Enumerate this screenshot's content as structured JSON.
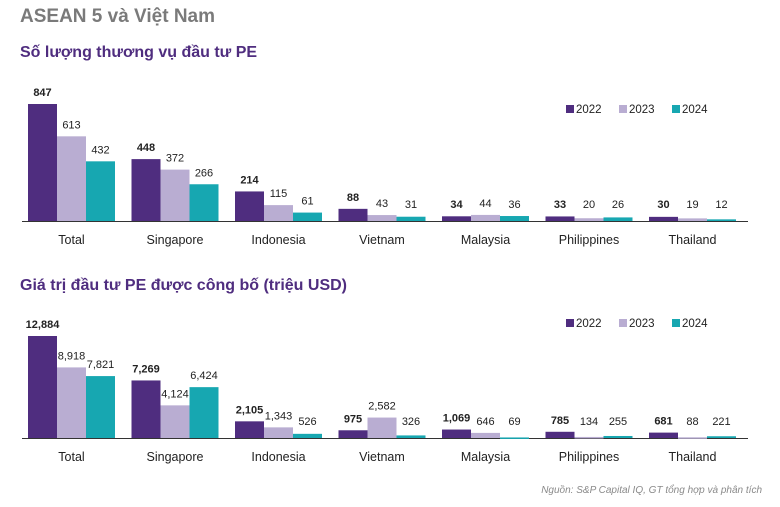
{
  "page_title": "ASEAN 5 và Việt Nam",
  "source": "Nguồn: S&P Capital IQ, GT tổng hợp và phân tích",
  "colors": {
    "2022": "#4F2D7F",
    "2023": "#B9ADD2",
    "2024": "#17A7B1"
  },
  "chart_data": [
    {
      "type": "bar",
      "title": "Số lượng thương vụ đầu tư PE",
      "categories": [
        "Total",
        "Singapore",
        "Indonesia",
        "Vietnam",
        "Malaysia",
        "Philippines",
        "Thailand"
      ],
      "series": [
        {
          "name": "2022",
          "values": [
            847,
            448,
            214,
            88,
            34,
            33,
            30
          ],
          "labels": [
            "847",
            "448",
            "214",
            "88",
            "34",
            "33",
            "30"
          ]
        },
        {
          "name": "2023",
          "values": [
            613,
            372,
            115,
            43,
            44,
            20,
            19
          ],
          "labels": [
            "613",
            "372",
            "115",
            "43",
            "44",
            "20",
            "19"
          ]
        },
        {
          "name": "2024",
          "values": [
            432,
            266,
            61,
            31,
            36,
            26,
            12
          ],
          "labels": [
            "432",
            "266",
            "61",
            "31",
            "36",
            "26",
            "12"
          ]
        }
      ],
      "ylim": [
        0,
        847
      ],
      "legend": "top-right"
    },
    {
      "type": "bar",
      "title": "Giá trị đầu tư PE được công bố (triệu USD)",
      "categories": [
        "Total",
        "Singapore",
        "Indonesia",
        "Vietnam",
        "Malaysia",
        "Philippines",
        "Thailand"
      ],
      "series": [
        {
          "name": "2022",
          "values": [
            12884,
            7269,
            2105,
            975,
            1069,
            785,
            681
          ],
          "labels": [
            "12,884",
            "7,269",
            "2,105",
            "975",
            "1,069",
            "785",
            "681"
          ]
        },
        {
          "name": "2023",
          "values": [
            8918,
            4124,
            1343,
            2582,
            646,
            134,
            88
          ],
          "labels": [
            "8,918",
            "4,124",
            "1,343",
            "2,582",
            "646",
            "134",
            "88"
          ]
        },
        {
          "name": "2024",
          "values": [
            7821,
            6424,
            526,
            326,
            69,
            255,
            221
          ],
          "labels": [
            "7,821",
            "6,424",
            "526",
            "326",
            "69",
            "255",
            "221"
          ]
        }
      ],
      "ylim": [
        0,
        12884
      ],
      "legend": "top-right"
    }
  ]
}
